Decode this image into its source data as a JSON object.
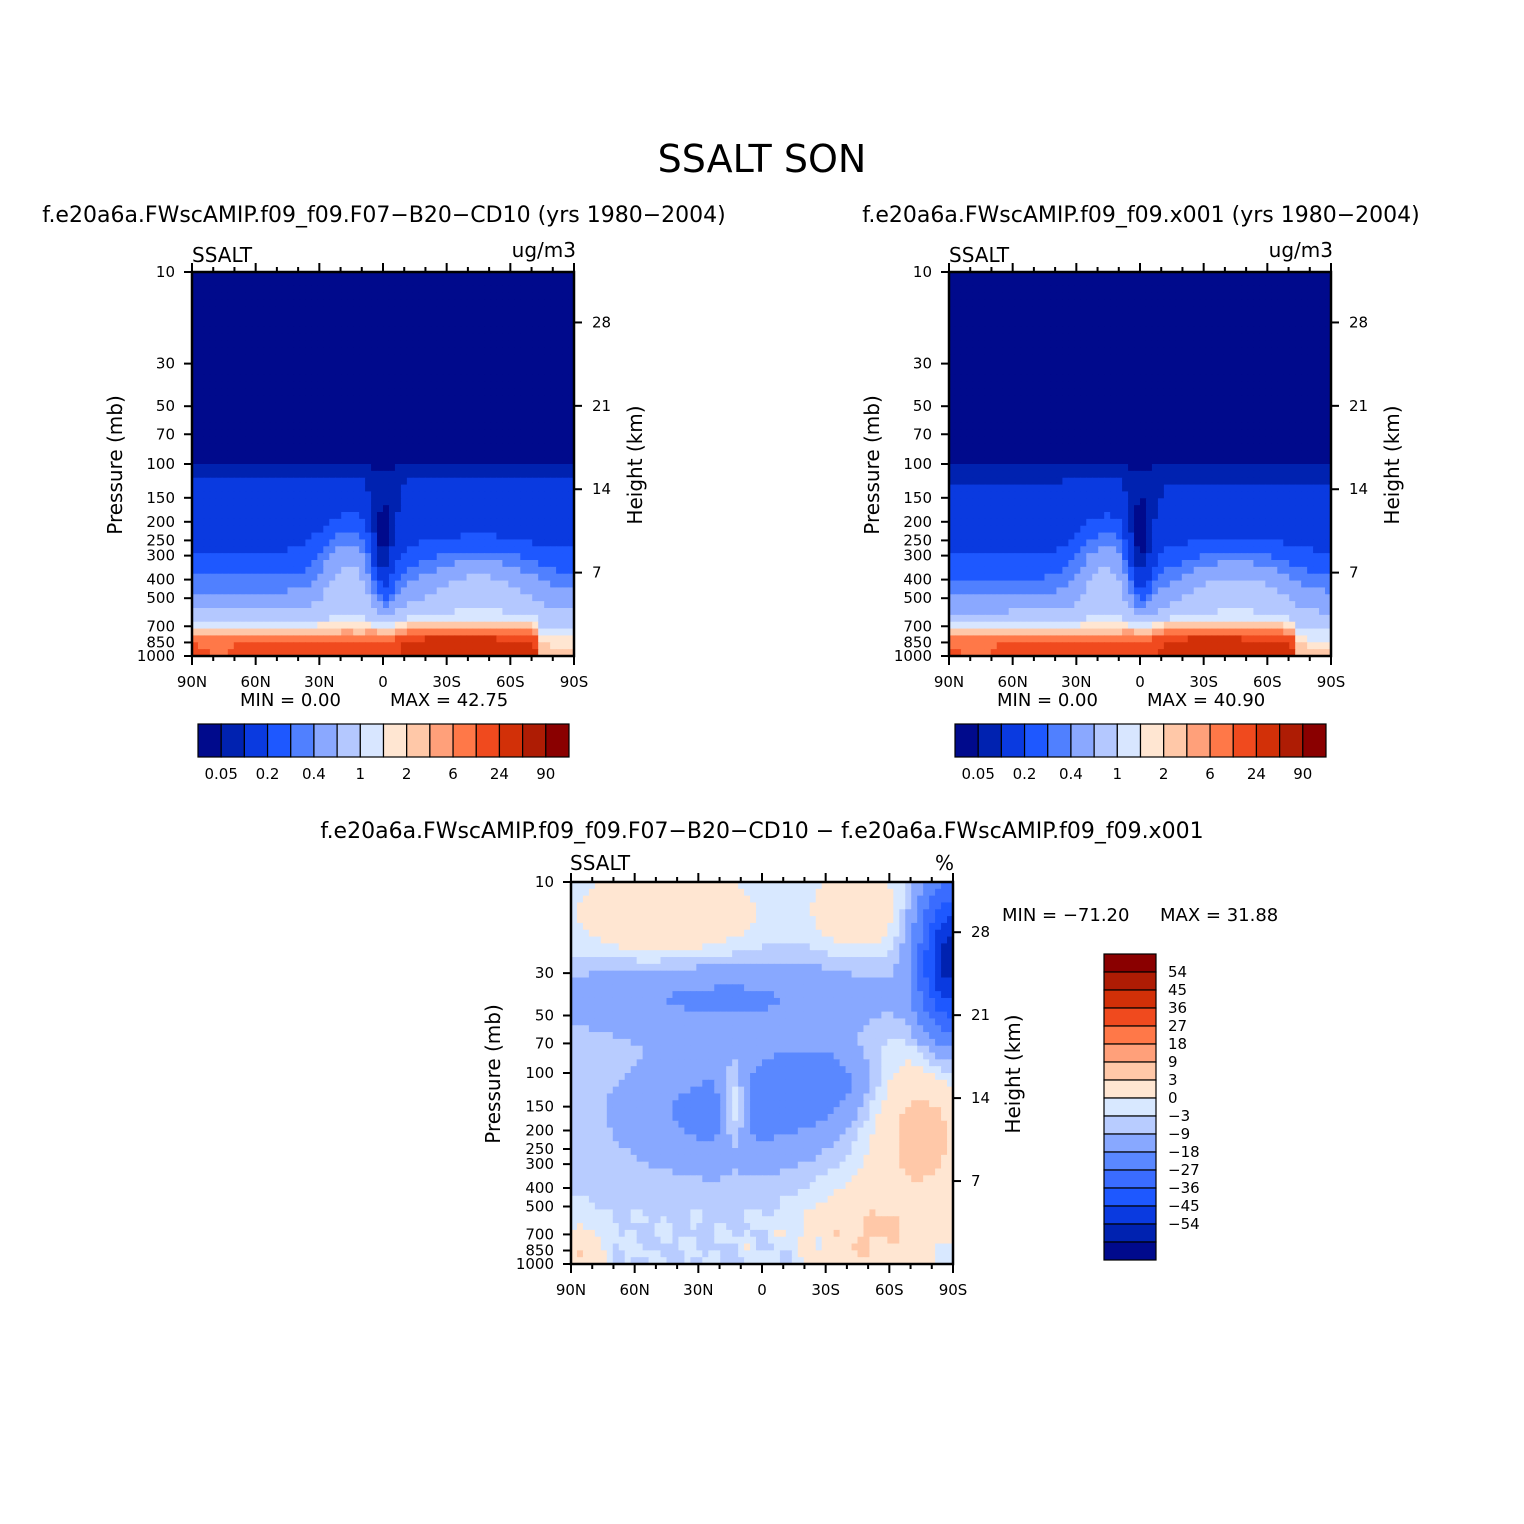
{
  "figure_title": "SSALT SON",
  "colors": {
    "abs_palette": [
      "#000a8c",
      "#0022b0",
      "#0a3ae0",
      "#1e58ff",
      "#5080ff",
      "#8aa8ff",
      "#b4c8ff",
      "#d8e6ff",
      "#ffe6d2",
      "#ffc8a8",
      "#ffa07a",
      "#ff7848",
      "#f04a1e",
      "#d23008",
      "#ae1c04",
      "#8a0000"
    ],
    "diff_palette": [
      "#000a8c",
      "#0022b0",
      "#0a3ae0",
      "#1e58ff",
      "#3a6cff",
      "#5a88ff",
      "#88a8ff",
      "#b8ccff",
      "#d8e8ff",
      "#ffe6d2",
      "#ffc8a8",
      "#ffa07a",
      "#ff7848",
      "#f04a1e",
      "#d23008",
      "#ae1c04",
      "#8a0000"
    ]
  },
  "chart_data": [
    {
      "type": "heatmap",
      "title": "f.e20a6a.FWscAMIP.f09_f09.F07−B20−CD10 (yrs 1980−2004)",
      "left_label": "SSALT",
      "units": "ug/m3",
      "ylabel": "Pressure (mb)",
      "ylabel2": "Height (km)",
      "xticks": [
        "90N",
        "60N",
        "30N",
        "0",
        "30S",
        "60S",
        "90S"
      ],
      "yticks": [
        "10",
        "30",
        "50",
        "70",
        "100",
        "150",
        "200",
        "250",
        "300",
        "400",
        "500",
        "700",
        "850",
        "1000"
      ],
      "y2ticks": [
        "28",
        "21",
        "14",
        "7"
      ],
      "min_text": "MIN =    0.00",
      "max_text": "MAX =   42.75",
      "min": 0.0,
      "max": 42.75,
      "colorbar_labels": [
        "0.05",
        "0.2",
        "0.4",
        "1",
        "2",
        "6",
        "24",
        "90"
      ]
    },
    {
      "type": "heatmap",
      "title": "f.e20a6a.FWscAMIP.f09_f09.x001 (yrs 1980−2004)",
      "left_label": "SSALT",
      "units": "ug/m3",
      "ylabel": "Pressure (mb)",
      "ylabel2": "Height (km)",
      "xticks": [
        "90N",
        "60N",
        "30N",
        "0",
        "30S",
        "60S",
        "90S"
      ],
      "yticks": [
        "10",
        "30",
        "50",
        "70",
        "100",
        "150",
        "200",
        "250",
        "300",
        "400",
        "500",
        "700",
        "850",
        "1000"
      ],
      "y2ticks": [
        "28",
        "21",
        "14",
        "7"
      ],
      "min_text": "MIN =    0.00",
      "max_text": "MAX =   40.90",
      "min": 0.0,
      "max": 40.9,
      "colorbar_labels": [
        "0.05",
        "0.2",
        "0.4",
        "1",
        "2",
        "6",
        "24",
        "90"
      ]
    },
    {
      "type": "heatmap",
      "title": "f.e20a6a.FWscAMIP.f09_f09.F07−B20−CD10 − f.e20a6a.FWscAMIP.f09_f09.x001",
      "left_label": "SSALT",
      "units": "%",
      "ylabel": "Pressure (mb)",
      "ylabel2": "Height (km)",
      "xticks": [
        "90N",
        "60N",
        "30N",
        "0",
        "30S",
        "60S",
        "90S"
      ],
      "yticks": [
        "10",
        "30",
        "50",
        "70",
        "100",
        "150",
        "200",
        "250",
        "300",
        "400",
        "500",
        "700",
        "850",
        "1000"
      ],
      "y2ticks": [
        "28",
        "21",
        "14",
        "7"
      ],
      "min_text": "MIN = −71.20",
      "max_text": "MAX =   31.88",
      "min": -71.2,
      "max": 31.88,
      "colorbar_labels": [
        "54",
        "45",
        "36",
        "27",
        "18",
        "9",
        "3",
        "0",
        "−3",
        "−9",
        "−18",
        "−27",
        "−36",
        "−45",
        "−54"
      ]
    }
  ]
}
